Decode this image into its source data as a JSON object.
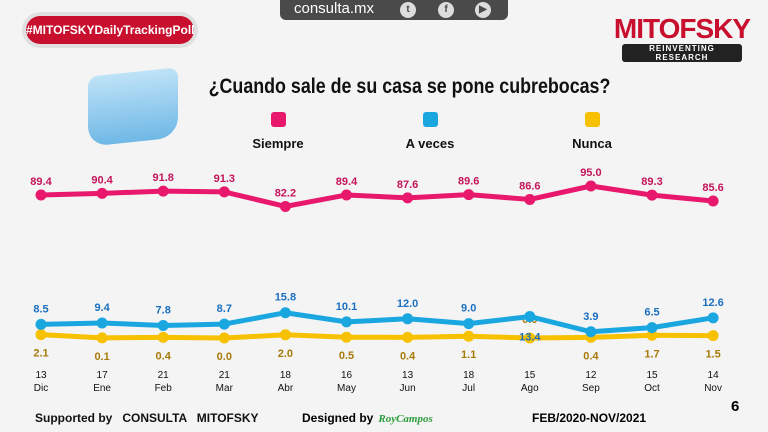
{
  "header": {
    "site": "consulta.mx",
    "hashtag": "#MITOFSKYDailyTrackingPoll",
    "logo_name": "MITOFSKY",
    "logo_tagline": "REINVENTING RESEARCH",
    "icons": [
      "twitter-icon",
      "facebook-icon",
      "youtube-icon"
    ]
  },
  "chart_data": {
    "type": "line",
    "title": "¿Cuando sale de su casa se pone cubrebocas?",
    "categories": [
      [
        "13",
        "Dic"
      ],
      [
        "17",
        "Ene"
      ],
      [
        "21",
        "Feb"
      ],
      [
        "21",
        "Mar"
      ],
      [
        "18",
        "Abr"
      ],
      [
        "16",
        "May"
      ],
      [
        "13",
        "Jun"
      ],
      [
        "18",
        "Jul"
      ],
      [
        "15",
        "Ago"
      ],
      [
        "12",
        "Sep"
      ],
      [
        "15",
        "Oct"
      ],
      [
        "14",
        "Nov"
      ]
    ],
    "series": [
      {
        "name": "Siempre",
        "color": "#e8196c",
        "label_color": "#c4145a",
        "values": [
          89.4,
          90.4,
          91.8,
          91.3,
          82.2,
          89.4,
          87.6,
          89.6,
          86.6,
          95.0,
          89.3,
          85.6
        ],
        "labels": [
          "89.4",
          "90.4",
          "91.8",
          "91.3",
          "82.2",
          "89.4",
          "87.6",
          "89.6",
          "86.6",
          "95.0",
          "89.3",
          "85.6"
        ]
      },
      {
        "name": "A veces",
        "color": "#1aa7e0",
        "label_color": "#1a6fc0",
        "values": [
          8.5,
          9.4,
          7.8,
          8.7,
          15.8,
          10.1,
          12.0,
          9.0,
          13.4,
          3.9,
          6.5,
          12.6
        ],
        "labels": [
          "8.5",
          "9.4",
          "7.8",
          "8.7",
          "15.8",
          "10.1",
          "12.0",
          "9.0",
          "13.4",
          "3.9",
          "6.5",
          "12.6"
        ]
      },
      {
        "name": "Nunca",
        "color": "#f7c100",
        "label_color": "#a87a08",
        "values": [
          2.1,
          0.1,
          0.4,
          0.0,
          2.0,
          0.5,
          0.4,
          1.1,
          0.0,
          0.4,
          1.7,
          1.5
        ],
        "labels": [
          "2.1",
          "0.1",
          "0.4",
          "0.0",
          "2.0",
          "0.5",
          "0.4",
          "1.1",
          "0.0",
          "0.4",
          "1.7",
          "1.5"
        ]
      }
    ],
    "ylim": [
      0,
      100
    ],
    "grid": false,
    "legend": "top"
  },
  "footer": {
    "supported": "Supported by   CONSULTA   MITOFSKY",
    "designed": "Designed by",
    "designer": "RoyCampos",
    "period": "FEB/2020-NOV/2021",
    "page": "6"
  }
}
